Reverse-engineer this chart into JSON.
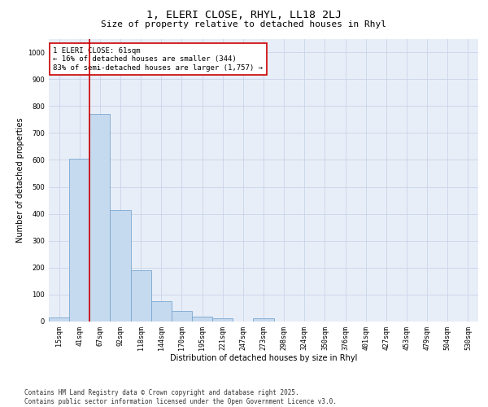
{
  "title_line1": "1, ELERI CLOSE, RHYL, LL18 2LJ",
  "title_line2": "Size of property relative to detached houses in Rhyl",
  "xlabel": "Distribution of detached houses by size in Rhyl",
  "ylabel": "Number of detached properties",
  "bar_categories": [
    "15sqm",
    "41sqm",
    "67sqm",
    "92sqm",
    "118sqm",
    "144sqm",
    "170sqm",
    "195sqm",
    "221sqm",
    "247sqm",
    "273sqm",
    "298sqm",
    "324sqm",
    "350sqm",
    "376sqm",
    "401sqm",
    "427sqm",
    "453sqm",
    "479sqm",
    "504sqm",
    "530sqm"
  ],
  "bar_values": [
    15,
    605,
    770,
    415,
    190,
    75,
    38,
    18,
    13,
    0,
    12,
    0,
    0,
    0,
    0,
    0,
    0,
    0,
    0,
    0,
    0
  ],
  "bar_color": "#c5d9ef",
  "bar_edge_color": "#7ba8d0",
  "vline_x_index": 1.48,
  "vline_color": "#cc0000",
  "annotation_text": "1 ELERI CLOSE: 61sqm\n← 16% of detached houses are smaller (344)\n83% of semi-detached houses are larger (1,757) →",
  "annotation_box_color": "#cc0000",
  "ylim": [
    0,
    1050
  ],
  "yticks": [
    0,
    100,
    200,
    300,
    400,
    500,
    600,
    700,
    800,
    900,
    1000
  ],
  "grid_color": "#c8d4e8",
  "background_color": "#e8eef8",
  "footnote": "Contains HM Land Registry data © Crown copyright and database right 2025.\nContains public sector information licensed under the Open Government Licence v3.0.",
  "title_fontsize": 9.5,
  "subtitle_fontsize": 8,
  "axis_label_fontsize": 7,
  "tick_fontsize": 6,
  "annotation_fontsize": 6.5,
  "footnote_fontsize": 5.5
}
